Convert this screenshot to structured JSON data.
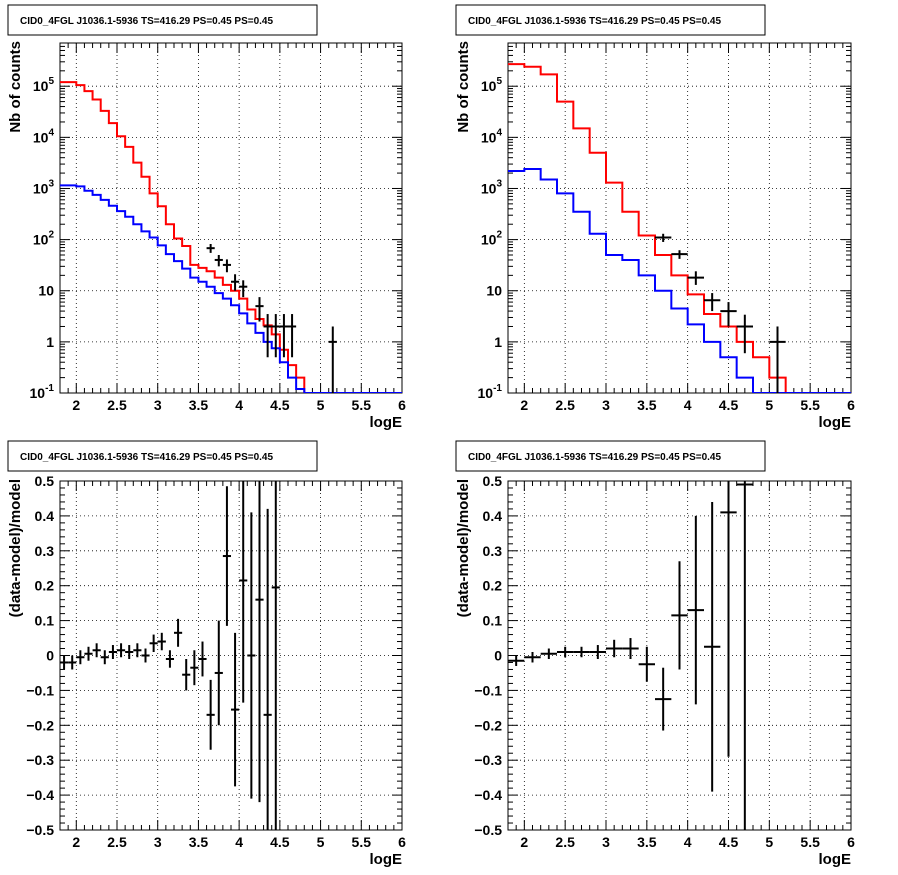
{
  "chart_data": [
    {
      "type": "histogram",
      "title": "CID0_4FGL J1036.1-5936 TS=416.29 PS=0.45 PS=0.45",
      "xlabel": "logE",
      "ylabel": "Nb of counts",
      "xlim": [
        1.8,
        6.0
      ],
      "ylim": [
        0.1,
        700000
      ],
      "log_y": true,
      "grid": true,
      "x_ticks": [
        "2",
        "2.5",
        "3",
        "3.5",
        "4",
        "4.5",
        "5",
        "5.5",
        "6"
      ],
      "y_ticks": [
        "10^-1",
        "1",
        "10",
        "10^2",
        "10^3",
        "10^4",
        "10^5"
      ],
      "bin_edges": [
        1.8,
        1.9,
        2.0,
        2.1,
        2.2,
        2.3,
        2.4,
        2.5,
        2.6,
        2.7,
        2.8,
        2.9,
        3.0,
        3.1,
        3.2,
        3.3,
        3.4,
        3.5,
        3.6,
        3.7,
        3.8,
        3.9,
        4.0,
        4.1,
        4.2,
        4.3,
        4.4,
        4.5,
        4.6,
        4.7,
        4.8,
        4.9,
        5.0,
        5.1,
        5.2,
        5.3,
        5.4,
        5.5,
        5.6,
        5.7,
        5.8,
        5.9,
        6.0
      ],
      "series": [
        {
          "color": "#ff0000",
          "style": "step",
          "values": [
            120000,
            120000,
            105000,
            80000,
            55000,
            33000,
            19000,
            10500,
            6500,
            3200,
            1700,
            800,
            450,
            200,
            105,
            75,
            32,
            28,
            24,
            18,
            13,
            10,
            7,
            4.3,
            2.8,
            2.1,
            1.4,
            0.7,
            0.35,
            0.2,
            0.1,
            0.1,
            0.1,
            0.1,
            0.1,
            0.1,
            0.1,
            0.1,
            0.1,
            0.1,
            0.1,
            0.1
          ]
        },
        {
          "color": "#0000ff",
          "style": "step",
          "values": [
            1150,
            1150,
            1100,
            900,
            750,
            600,
            460,
            360,
            280,
            200,
            145,
            110,
            77,
            52,
            38,
            27,
            18,
            15,
            12,
            9,
            7,
            5.2,
            3.6,
            2.3,
            1.5,
            1.0,
            0.75,
            0.4,
            0.2,
            0.12,
            0.1,
            0.1,
            0.1,
            0.1,
            0.1,
            0.1,
            0.1,
            0.1,
            0.1,
            0.1,
            0.1,
            0.1
          ]
        },
        {
          "color": "#000000",
          "style": "points",
          "points": [
            {
              "x": 3.65,
              "y": 68,
              "lo": 55,
              "hi": 82,
              "xerr": 0.05
            },
            {
              "x": 3.75,
              "y": 40,
              "lo": 30,
              "hi": 50,
              "xerr": 0.05
            },
            {
              "x": 3.85,
              "y": 32,
              "lo": 23,
              "hi": 41,
              "xerr": 0.05
            },
            {
              "x": 3.95,
              "y": 15,
              "lo": 10,
              "hi": 21,
              "xerr": 0.05
            },
            {
              "x": 4.05,
              "y": 12,
              "lo": 7.5,
              "hi": 16,
              "xerr": 0.05
            },
            {
              "x": 4.25,
              "y": 5,
              "lo": 2.5,
              "hi": 7.5,
              "xerr": 0.05
            },
            {
              "x": 4.35,
              "y": 2,
              "lo": 0.5,
              "hi": 3.5,
              "xerr": 0.05
            },
            {
              "x": 4.45,
              "y": 2,
              "lo": 0.5,
              "hi": 3.5,
              "xerr": 0.05
            },
            {
              "x": 4.55,
              "y": 2,
              "lo": 0.5,
              "hi": 3.5,
              "xerr": 0.05
            },
            {
              "x": 4.65,
              "y": 2,
              "lo": 0.5,
              "hi": 3.5,
              "xerr": 0.05
            },
            {
              "x": 5.15,
              "y": 1,
              "lo": 0.1,
              "hi": 2.0,
              "xerr": 0.05
            }
          ]
        }
      ]
    },
    {
      "type": "histogram",
      "title": "CID0_4FGL J1036.1-5936 TS=416.29 PS=0.45 PS=0.45",
      "xlabel": "logE",
      "ylabel": "Nb of counts",
      "xlim": [
        1.8,
        6.0
      ],
      "ylim": [
        0.1,
        700000
      ],
      "log_y": true,
      "grid": true,
      "x_ticks": [
        "2",
        "2.5",
        "3",
        "3.5",
        "4",
        "4.5",
        "5",
        "5.5",
        "6"
      ],
      "y_ticks": [
        "10^-1",
        "1",
        "10",
        "10^2",
        "10^3",
        "10^4",
        "10^5"
      ],
      "bin_edges": [
        1.8,
        2.0,
        2.2,
        2.4,
        2.6,
        2.8,
        3.0,
        3.2,
        3.4,
        3.6,
        3.8,
        4.0,
        4.2,
        4.4,
        4.6,
        4.8,
        5.0,
        5.2,
        5.4,
        5.6,
        5.8,
        6.0
      ],
      "series": [
        {
          "color": "#ff0000",
          "style": "step",
          "values": [
            270000,
            240000,
            170000,
            50000,
            15000,
            5000,
            1300,
            350,
            120,
            50,
            20,
            8.5,
            3.5,
            2.0,
            1.0,
            0.5,
            0.2,
            0.1,
            0.1,
            0.1,
            0.1
          ]
        },
        {
          "color": "#0000ff",
          "style": "step",
          "values": [
            2200,
            2400,
            1500,
            800,
            350,
            130,
            50,
            40,
            20,
            10,
            4.5,
            2.2,
            1.0,
            0.5,
            0.2,
            0.1,
            0.1,
            0.1,
            0.1,
            0.1,
            0.1
          ]
        },
        {
          "color": "#000000",
          "style": "points",
          "points": [
            {
              "x": 3.7,
              "y": 110,
              "lo": 90,
              "hi": 130,
              "xerr": 0.1
            },
            {
              "x": 3.9,
              "y": 52,
              "lo": 42,
              "hi": 62,
              "xerr": 0.1
            },
            {
              "x": 4.1,
              "y": 18,
              "lo": 13,
              "hi": 24,
              "xerr": 0.1
            },
            {
              "x": 4.3,
              "y": 6.5,
              "lo": 4,
              "hi": 9,
              "xerr": 0.1
            },
            {
              "x": 4.5,
              "y": 4,
              "lo": 2,
              "hi": 6,
              "xerr": 0.1
            },
            {
              "x": 4.7,
              "y": 2,
              "lo": 0.6,
              "hi": 3.4,
              "xerr": 0.1
            },
            {
              "x": 5.1,
              "y": 1,
              "lo": 0.1,
              "hi": 2.0,
              "xerr": 0.1
            }
          ]
        }
      ]
    },
    {
      "type": "scatter",
      "title": "CID0_4FGL J1036.1-5936 TS=416.29 PS=0.45 PS=0.45",
      "xlabel": "logE",
      "ylabel": "(data-model)/model",
      "xlim": [
        1.8,
        6.0
      ],
      "ylim": [
        -0.5,
        0.5
      ],
      "grid": true,
      "x_ticks": [
        "2",
        "2.5",
        "3",
        "3.5",
        "4",
        "4.5",
        "5",
        "5.5",
        "6"
      ],
      "y_ticks": [
        "-0.5",
        "-0.4",
        "-0.3",
        "-0.2",
        "-0.1",
        "0",
        "0.1",
        "0.2",
        "0.3",
        "0.4",
        "0.5"
      ],
      "series": [
        {
          "color": "#000000",
          "style": "points",
          "points": [
            {
              "x": 1.85,
              "y": -0.02,
              "err": 0.02,
              "xerr": 0.05
            },
            {
              "x": 1.95,
              "y": -0.02,
              "err": 0.02,
              "xerr": 0.05
            },
            {
              "x": 2.05,
              "y": -0.005,
              "err": 0.02,
              "xerr": 0.05
            },
            {
              "x": 2.15,
              "y": 0.005,
              "err": 0.02,
              "xerr": 0.05
            },
            {
              "x": 2.25,
              "y": 0.015,
              "err": 0.02,
              "xerr": 0.05
            },
            {
              "x": 2.35,
              "y": -0.005,
              "err": 0.02,
              "xerr": 0.05
            },
            {
              "x": 2.45,
              "y": 0.01,
              "err": 0.02,
              "xerr": 0.05
            },
            {
              "x": 2.55,
              "y": 0.015,
              "err": 0.02,
              "xerr": 0.05
            },
            {
              "x": 2.65,
              "y": 0.01,
              "err": 0.02,
              "xerr": 0.05
            },
            {
              "x": 2.75,
              "y": 0.015,
              "err": 0.02,
              "xerr": 0.05
            },
            {
              "x": 2.85,
              "y": 0.0,
              "err": 0.02,
              "xerr": 0.05
            },
            {
              "x": 2.95,
              "y": 0.035,
              "err": 0.025,
              "xerr": 0.05
            },
            {
              "x": 3.05,
              "y": 0.04,
              "err": 0.025,
              "xerr": 0.05
            },
            {
              "x": 3.15,
              "y": -0.01,
              "err": 0.025,
              "xerr": 0.05
            },
            {
              "x": 3.25,
              "y": 0.065,
              "err": 0.04,
              "xerr": 0.05
            },
            {
              "x": 3.35,
              "y": -0.055,
              "err": 0.045,
              "xerr": 0.05
            },
            {
              "x": 3.45,
              "y": -0.035,
              "err": 0.05,
              "xerr": 0.05
            },
            {
              "x": 3.55,
              "y": -0.01,
              "err": 0.05,
              "xerr": 0.05
            },
            {
              "x": 3.65,
              "y": -0.17,
              "err": 0.1,
              "xerr": 0.05
            },
            {
              "x": 3.75,
              "y": -0.05,
              "err": 0.15,
              "xerr": 0.05
            },
            {
              "x": 3.85,
              "y": 0.285,
              "err": 0.2,
              "xerr": 0.05
            },
            {
              "x": 3.95,
              "y": -0.155,
              "err": 0.22,
              "xerr": 0.05
            },
            {
              "x": 4.05,
              "y": 0.215,
              "err": 0.35,
              "xerr": 0.05
            },
            {
              "x": 4.15,
              "y": 0.0,
              "err": 0.41,
              "xerr": 0.05
            },
            {
              "x": 4.25,
              "y": 0.16,
              "err": 0.58,
              "xerr": 0.05
            },
            {
              "x": 4.35,
              "y": -0.17,
              "err": 0.59,
              "xerr": 0.05
            },
            {
              "x": 4.45,
              "y": 0.195,
              "err": 0.9,
              "xerr": 0.05
            }
          ]
        }
      ]
    },
    {
      "type": "scatter",
      "title": "CID0_4FGL J1036.1-5936 TS=416.29 PS=0.45 PS=0.45",
      "xlabel": "logE",
      "ylabel": "(data-model)/model",
      "xlim": [
        1.8,
        6.0
      ],
      "ylim": [
        -0.5,
        0.5
      ],
      "grid": true,
      "x_ticks": [
        "2",
        "2.5",
        "3",
        "3.5",
        "4",
        "4.5",
        "5",
        "5.5",
        "6"
      ],
      "y_ticks": [
        "-0.5",
        "-0.4",
        "-0.3",
        "-0.2",
        "-0.1",
        "0",
        "0.1",
        "0.2",
        "0.3",
        "0.4",
        "0.5"
      ],
      "series": [
        {
          "color": "#000000",
          "style": "points",
          "points": [
            {
              "x": 1.9,
              "y": -0.015,
              "err": 0.015,
              "xerr": 0.1
            },
            {
              "x": 2.1,
              "y": -0.005,
              "err": 0.015,
              "xerr": 0.1
            },
            {
              "x": 2.3,
              "y": 0.005,
              "err": 0.015,
              "xerr": 0.1
            },
            {
              "x": 2.5,
              "y": 0.01,
              "err": 0.015,
              "xerr": 0.1
            },
            {
              "x": 2.7,
              "y": 0.01,
              "err": 0.015,
              "xerr": 0.1
            },
            {
              "x": 2.9,
              "y": 0.01,
              "err": 0.02,
              "xerr": 0.1
            },
            {
              "x": 3.1,
              "y": 0.02,
              "err": 0.025,
              "xerr": 0.1
            },
            {
              "x": 3.3,
              "y": 0.02,
              "err": 0.03,
              "xerr": 0.1
            },
            {
              "x": 3.5,
              "y": -0.025,
              "err": 0.05,
              "xerr": 0.1
            },
            {
              "x": 3.7,
              "y": -0.125,
              "err": 0.09,
              "xerr": 0.1
            },
            {
              "x": 3.9,
              "y": 0.115,
              "err": 0.155,
              "xerr": 0.1
            },
            {
              "x": 4.1,
              "y": 0.13,
              "err": 0.27,
              "xerr": 0.1
            },
            {
              "x": 4.3,
              "y": 0.025,
              "err": 0.415,
              "xerr": 0.1
            },
            {
              "x": 4.5,
              "y": 0.41,
              "err": 0.7,
              "xerr": 0.1
            },
            {
              "x": 4.7,
              "y": 0.49,
              "err": 1.2,
              "xerr": 0.1
            }
          ]
        }
      ]
    }
  ]
}
